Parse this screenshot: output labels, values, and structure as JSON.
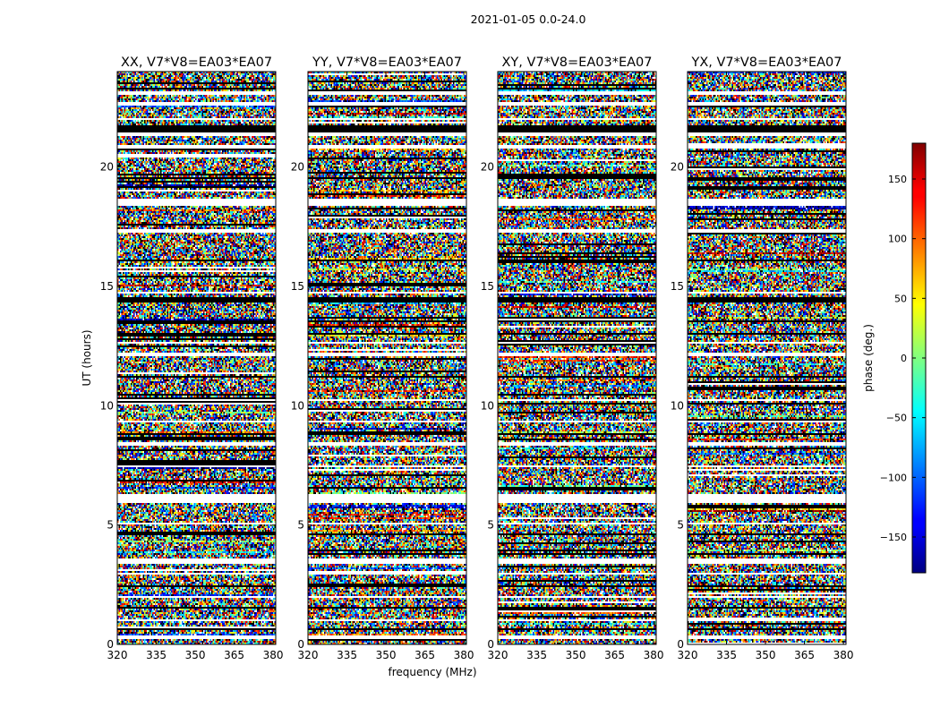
{
  "figure": {
    "suptitle": "2021-01-05 0.0-24.0",
    "xlabel": "frequency (MHz)",
    "ylabel": "UT (hours)"
  },
  "chart_data": {
    "type": "heatmap",
    "colormap": "jet",
    "xlim": [
      320,
      381
    ],
    "ylim": [
      0,
      24
    ],
    "xticks": [
      320,
      335,
      350,
      365,
      380
    ],
    "yticks": [
      0,
      5,
      10,
      15,
      20
    ],
    "panels": [
      {
        "title": "XX, V7*V8=EA03*EA07"
      },
      {
        "title": "YY, V7*V8=EA03*EA07"
      },
      {
        "title": "XY, V7*V8=EA03*EA07"
      },
      {
        "title": "YX, V7*V8=EA03*EA07"
      }
    ],
    "colorbar": {
      "label": "phase (deg.)",
      "vmin": -180,
      "vmax": 180,
      "ticks": [
        -150,
        -100,
        -50,
        0,
        50,
        100,
        150
      ],
      "tick_labels": [
        "−150",
        "−100",
        "−50",
        "0",
        "50",
        "100",
        "150"
      ]
    },
    "flagged_bands_white_ut": [
      [
        23.05,
        23.2
      ],
      [
        22.55,
        22.7
      ],
      [
        21.95,
        22.05
      ],
      [
        21.3,
        21.45
      ],
      [
        20.8,
        20.9
      ],
      [
        18.4,
        18.7
      ],
      [
        17.25,
        17.4
      ],
      [
        14.7,
        14.8
      ],
      [
        12.6,
        12.7
      ],
      [
        12.1,
        12.25
      ],
      [
        10.2,
        10.3
      ],
      [
        9.3,
        9.4
      ],
      [
        8.35,
        8.45
      ],
      [
        7.4,
        7.5
      ],
      [
        5.95,
        6.3
      ],
      [
        5.0,
        5.08
      ],
      [
        3.4,
        3.6
      ],
      [
        2.9,
        3.0
      ],
      [
        1.95,
        2.05
      ],
      [
        0.95,
        1.05
      ],
      [
        0.25,
        0.35
      ]
    ],
    "no_data_bands_black_ut": [
      [
        21.45,
        21.75
      ],
      [
        14.35,
        14.55
      ],
      [
        13.5,
        13.6
      ],
      [
        12.95,
        13.05
      ],
      [
        19.5,
        19.58
      ],
      [
        16.05,
        16.12
      ],
      [
        11.2,
        11.28
      ],
      [
        8.8,
        8.88
      ],
      [
        4.6,
        4.68
      ],
      [
        2.4,
        2.48
      ],
      [
        1.5,
        1.58
      ],
      [
        0.6,
        0.68
      ]
    ]
  }
}
